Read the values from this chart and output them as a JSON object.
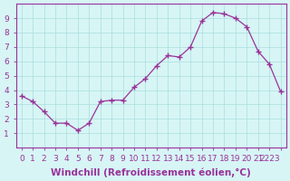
{
  "x": [
    0,
    1,
    2,
    3,
    4,
    5,
    6,
    7,
    8,
    9,
    10,
    11,
    12,
    13,
    14,
    15,
    16,
    17,
    18,
    19,
    20,
    21,
    22,
    23
  ],
  "y": [
    3.6,
    3.2,
    2.5,
    1.7,
    1.7,
    1.2,
    1.7,
    3.2,
    3.3,
    3.3,
    4.2,
    4.8,
    5.7,
    6.4,
    6.3,
    7.0,
    8.8,
    9.4,
    9.3,
    9.0,
    8.4,
    6.7,
    5.8,
    3.9
  ],
  "line_color": "#993399",
  "marker": "+",
  "marker_size": 4,
  "bg_color": "#d7f5f5",
  "grid_color": "#aadddd",
  "xlabel": "Windchill (Refroidissement éolien,°C)",
  "xlabel_fontsize": 7.5,
  "xtick_labels": [
    "0",
    "1",
    "2",
    "3",
    "4",
    "5",
    "6",
    "7",
    "8",
    "9",
    "10",
    "11",
    "12",
    "13",
    "14",
    "15",
    "16",
    "17",
    "18",
    "19",
    "20",
    "21",
    "2223",
    ""
  ],
  "ylim": [
    0,
    10
  ],
  "xlim": [
    -0.5,
    23.5
  ],
  "yticks": [
    1,
    2,
    3,
    4,
    5,
    6,
    7,
    8,
    9
  ],
  "xticks": [
    0,
    1,
    2,
    3,
    4,
    5,
    6,
    7,
    8,
    9,
    10,
    11,
    12,
    13,
    14,
    15,
    16,
    17,
    18,
    19,
    20,
    21,
    22,
    23
  ],
  "tick_fontsize": 6.5,
  "axis_color": "#993399"
}
